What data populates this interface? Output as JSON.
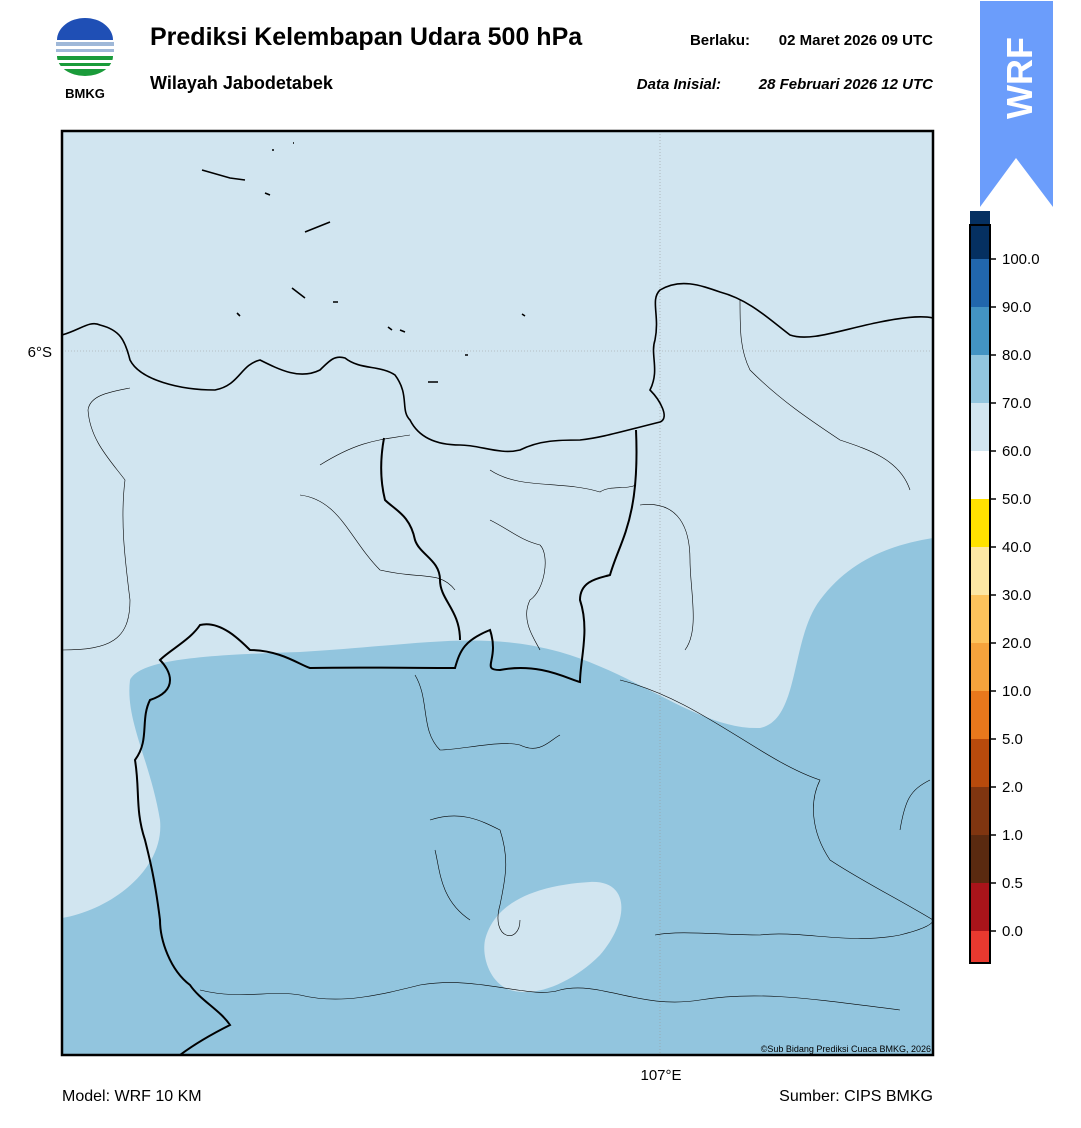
{
  "header": {
    "logo_text": "BMKG",
    "title": "Prediksi Kelembapan Udara 500 hPa",
    "subtitle": "Wilayah Jabodetabek",
    "valid_label": "Berlaku:",
    "valid_time": "02 Maret 2026 09 UTC",
    "init_label": "Data Inisial:",
    "init_time": "28 Februari 2026 12 UTC",
    "badge": "WRF"
  },
  "map": {
    "lat_label": "6°S",
    "lon_label": "107°E",
    "credit": "©Sub Bidang Prediksi Cuaca BMKG, 2026"
  },
  "colorbar": {
    "colors": [
      "#e8392f",
      "#a8141a",
      "#5a2a10",
      "#7f3510",
      "#b84a0c",
      "#e8781c",
      "#f6a33c",
      "#fdc35c",
      "#fde7a4",
      "#ffe100",
      "#ffffff",
      "#d1e5f0",
      "#92c5de",
      "#4393c3",
      "#2166ac",
      "#053061",
      "#2d0a4e"
    ],
    "ticks": [
      {
        "value": 0,
        "label": "0.0"
      },
      {
        "value": 0.5,
        "label": "0.5"
      },
      {
        "value": 1,
        "label": "1.0"
      },
      {
        "value": 2,
        "label": "2.0"
      },
      {
        "value": 5,
        "label": "5.0"
      },
      {
        "value": 10,
        "label": "10.0"
      },
      {
        "value": 20,
        "label": "20.0"
      },
      {
        "value": 30,
        "label": "30.0"
      },
      {
        "value": 40,
        "label": "40.0"
      },
      {
        "value": 50,
        "label": "50.0"
      },
      {
        "value": 60,
        "label": "60.0"
      },
      {
        "value": 70,
        "label": "70.0"
      },
      {
        "value": 80,
        "label": "80.0"
      },
      {
        "value": 90,
        "label": "90.0"
      },
      {
        "value": 100,
        "label": "100.0"
      }
    ]
  },
  "footer": {
    "model": "Model: WRF 10 KM",
    "source": "Sumber: CIPS BMKG"
  }
}
